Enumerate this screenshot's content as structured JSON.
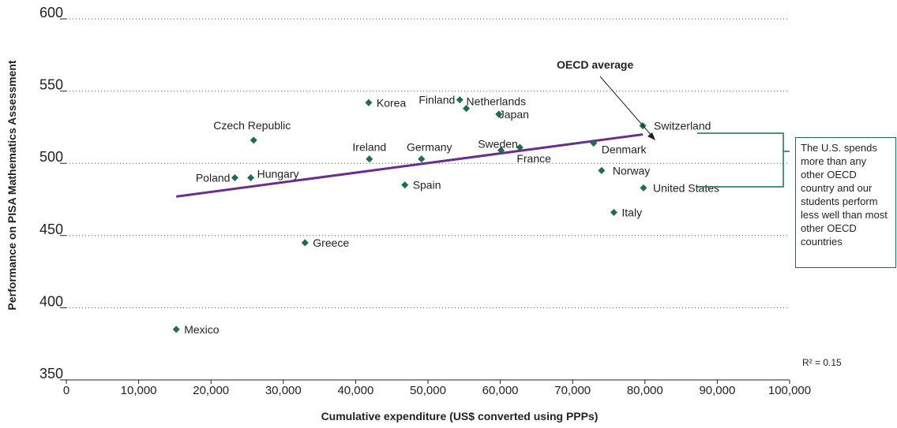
{
  "chart_data": {
    "type": "scatter",
    "xlabel": "Cumulative expenditure (US$ converted using PPPs)",
    "ylabel": "Performance on PISA Mathematics Assessment",
    "xlim": [
      0,
      100000
    ],
    "ylim": [
      350,
      600
    ],
    "x_ticks": [
      0,
      10000,
      20000,
      30000,
      40000,
      50000,
      60000,
      70000,
      80000,
      90000,
      100000
    ],
    "x_tick_labels": [
      "0",
      "10,000",
      "20,000",
      "30,000",
      "40,000",
      "50,000",
      "60,000",
      "70,000",
      "80,000",
      "90,000",
      "100,000"
    ],
    "y_ticks": [
      350,
      400,
      450,
      500,
      550,
      600
    ],
    "y_tick_labels": [
      "350",
      "400",
      "450",
      "500",
      "550",
      "600"
    ],
    "grid": "horizontal dotted",
    "marker_color": "#1f6b55",
    "trend_color": "#6b2d8c",
    "points": [
      {
        "label": "Mexico",
        "x": 15200,
        "y": 385
      },
      {
        "label": "Poland",
        "x": 23300,
        "y": 490
      },
      {
        "label": "Hungary",
        "x": 25500,
        "y": 490
      },
      {
        "label": "Czech Republic",
        "x": 25900,
        "y": 516
      },
      {
        "label": "Greece",
        "x": 33000,
        "y": 445
      },
      {
        "label": "Korea",
        "x": 41800,
        "y": 542
      },
      {
        "label": "Ireland",
        "x": 41900,
        "y": 503
      },
      {
        "label": "Spain",
        "x": 46800,
        "y": 485
      },
      {
        "label": "Germany",
        "x": 49100,
        "y": 503
      },
      {
        "label": "Finland",
        "x": 54400,
        "y": 544
      },
      {
        "label": "Netherlands",
        "x": 55300,
        "y": 538
      },
      {
        "label": "Japan",
        "x": 59800,
        "y": 534
      },
      {
        "label": "Sweden",
        "x": 60100,
        "y": 509
      },
      {
        "label": "France",
        "x": 62700,
        "y": 511
      },
      {
        "label": "Denmark",
        "x": 72900,
        "y": 514
      },
      {
        "label": "Norway",
        "x": 74000,
        "y": 495
      },
      {
        "label": "Italy",
        "x": 75700,
        "y": 466
      },
      {
        "label": "Switzerland",
        "x": 79700,
        "y": 526
      },
      {
        "label": "United States",
        "x": 79800,
        "y": 483
      }
    ],
    "trendline": {
      "x": [
        15200,
        79700
      ],
      "y": [
        477,
        520
      ]
    },
    "annotations": {
      "oecd_average": "OECD average",
      "r_squared": "R² = 0.15",
      "callout": "The U.S. spends more than any other OECD country and our students perform less well than most other OECD countries"
    }
  }
}
